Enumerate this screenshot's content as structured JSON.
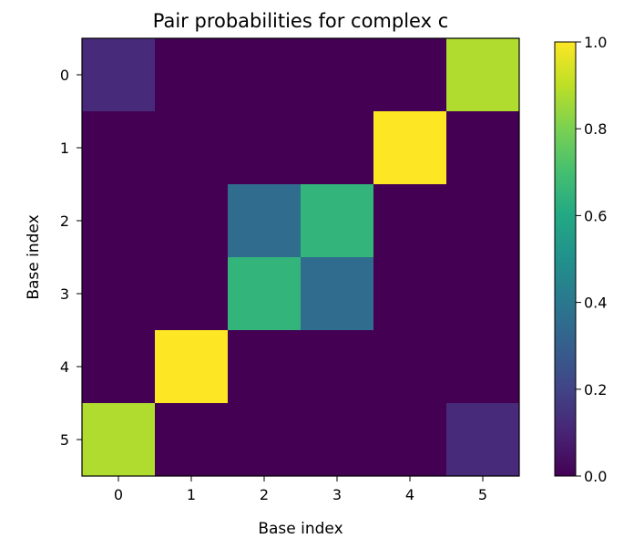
{
  "chart_data": {
    "type": "heatmap",
    "title": "Pair probabilities for complex c",
    "xlabel": "Base index",
    "ylabel": "Base index",
    "x_categories": [
      "0",
      "1",
      "2",
      "3",
      "4",
      "5"
    ],
    "y_categories": [
      "0",
      "1",
      "2",
      "3",
      "4",
      "5"
    ],
    "values": [
      [
        0.12,
        0.0,
        0.0,
        0.0,
        0.0,
        0.88
      ],
      [
        0.0,
        0.0,
        0.0,
        0.0,
        1.0,
        0.0
      ],
      [
        0.0,
        0.0,
        0.35,
        0.65,
        0.0,
        0.0
      ],
      [
        0.0,
        0.0,
        0.65,
        0.35,
        0.0,
        0.0
      ],
      [
        0.0,
        1.0,
        0.0,
        0.0,
        0.0,
        0.0
      ],
      [
        0.88,
        0.0,
        0.0,
        0.0,
        0.0,
        0.12
      ]
    ],
    "colormap": "viridis",
    "vmin": 0.0,
    "vmax": 1.0,
    "colorbar_ticks": [
      "0.0",
      "0.2",
      "0.4",
      "0.6",
      "0.8",
      "1.0"
    ],
    "grid": false,
    "colorbar_position": "right"
  }
}
